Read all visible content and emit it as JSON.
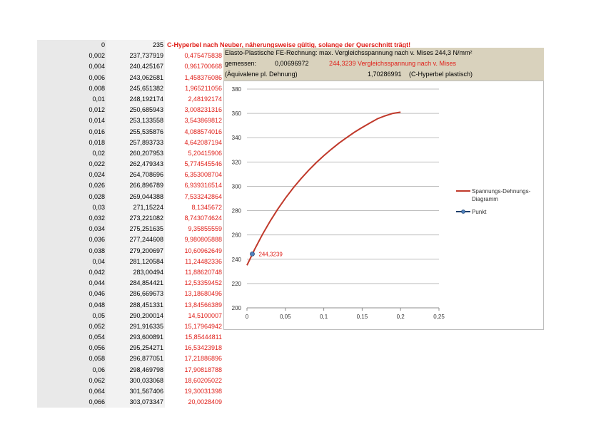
{
  "table": {
    "rows": [
      [
        "0",
        "235",
        ""
      ],
      [
        "0,002",
        "237,737919",
        "0,475475838"
      ],
      [
        "0,004",
        "240,425167",
        "0,961700668"
      ],
      [
        "0,006",
        "243,062681",
        "1,458376086"
      ],
      [
        "0,008",
        "245,651382",
        "1,965211056"
      ],
      [
        "0,01",
        "248,192174",
        "2,48192174"
      ],
      [
        "0,012",
        "250,685943",
        "3,008231316"
      ],
      [
        "0,014",
        "253,133558",
        "3,543869812"
      ],
      [
        "0,016",
        "255,535876",
        "4,088574016"
      ],
      [
        "0,018",
        "257,893733",
        "4,642087194"
      ],
      [
        "0,02",
        "260,207953",
        "5,20415906"
      ],
      [
        "0,022",
        "262,479343",
        "5,774545546"
      ],
      [
        "0,024",
        "264,708696",
        "6,353008704"
      ],
      [
        "0,026",
        "266,896789",
        "6,939316514"
      ],
      [
        "0,028",
        "269,044388",
        "7,533242864"
      ],
      [
        "0,03",
        "271,15224",
        "8,1345672"
      ],
      [
        "0,032",
        "273,221082",
        "8,743074624"
      ],
      [
        "0,034",
        "275,251635",
        "9,35855559"
      ],
      [
        "0,036",
        "277,244608",
        "9,980805888"
      ],
      [
        "0,038",
        "279,200697",
        "10,60962649"
      ],
      [
        "0,04",
        "281,120584",
        "11,24482336"
      ],
      [
        "0,042",
        "283,00494",
        "11,88620748"
      ],
      [
        "0,044",
        "284,854421",
        "12,53359452"
      ],
      [
        "0,046",
        "286,669673",
        "13,18680496"
      ],
      [
        "0,048",
        "288,451331",
        "13,84566389"
      ],
      [
        "0,05",
        "290,200014",
        "14,5100007"
      ],
      [
        "0,052",
        "291,916335",
        "15,17964942"
      ],
      [
        "0,054",
        "293,600891",
        "15,85444811"
      ],
      [
        "0,056",
        "295,254271",
        "16,53423918"
      ],
      [
        "0,058",
        "296,877051",
        "17,21886896"
      ],
      [
        "0,06",
        "298,469798",
        "17,90818788"
      ],
      [
        "0,062",
        "300,033068",
        "18,60205022"
      ],
      [
        "0,064",
        "301,567406",
        "19,30031398"
      ],
      [
        "0,066",
        "303,073347",
        "20,0028409"
      ]
    ]
  },
  "title": "C-Hyperbel nach Neuber, näherungsweise gültig, solange der Querschnitt trägt!",
  "info": {
    "line1": "Elasto-Plastische FE-Rechnung: max. Vergleichsspannung nach v. Mises 244,3 N/mm²",
    "line2_label": "gemessen:",
    "line2_value": "0,00696972",
    "line2_red": "244,3239  Vergleichsspannung nach v. Mises",
    "line3_label": "(Äquivalene pl. Dehnung)",
    "line3_value": "1,70286991",
    "line3_note": "(C-Hyperbel plastisch)"
  },
  "colors": {
    "curve": "#c0392b",
    "point": "#4f81bd",
    "red_text": "#e0201a"
  },
  "chart_data": {
    "type": "line",
    "xlim": [
      0,
      0.25
    ],
    "ylim": [
      200,
      380
    ],
    "xticks": [
      "0",
      "0,05",
      "0,1",
      "0,15",
      "0,2",
      "0,25"
    ],
    "yticks": [
      "200",
      "220",
      "240",
      "260",
      "280",
      "300",
      "320",
      "340",
      "360",
      "380"
    ],
    "grid": "horizontal",
    "legend_placement": "right",
    "series": [
      {
        "name": "Spannungs-Dehnungs-Diagramm",
        "type": "line",
        "x": [
          0,
          0.01,
          0.02,
          0.03,
          0.04,
          0.05,
          0.06,
          0.07,
          0.08,
          0.09,
          0.1,
          0.11,
          0.12,
          0.13,
          0.14,
          0.15,
          0.16,
          0.17,
          0.18,
          0.19,
          0.2
        ],
        "y": [
          235,
          248.2,
          260.2,
          271.2,
          281.1,
          290.2,
          298.5,
          306.0,
          313.0,
          319.3,
          325.2,
          330.6,
          335.6,
          340.2,
          344.5,
          348.4,
          352.1,
          355.6,
          358.0,
          360.0,
          361.0
        ]
      },
      {
        "name": "Punkt",
        "type": "point",
        "x": [
          0.00696972
        ],
        "y": [
          244.3239
        ],
        "label": "244,3239"
      }
    ]
  }
}
